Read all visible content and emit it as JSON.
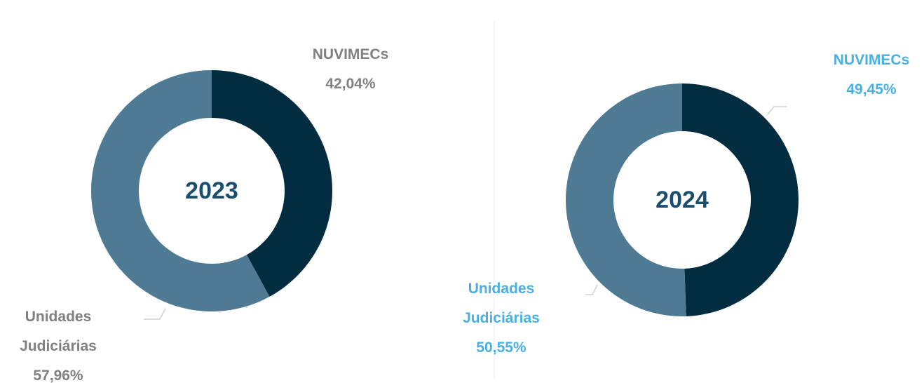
{
  "chart_data": [
    {
      "type": "donut",
      "title": "2023",
      "categories": [
        "NUVIMECs",
        "Unidades Judiciárias"
      ],
      "values": [
        42.04,
        57.96
      ],
      "value_labels": [
        "42,04%",
        "57,96%"
      ],
      "colors": [
        "#022c40",
        "#4e7b93"
      ],
      "label_color": "#808080"
    },
    {
      "type": "donut",
      "title": "2024",
      "categories": [
        "NUVIMECs",
        "Unidades Judiciárias"
      ],
      "values": [
        49.45,
        50.55
      ],
      "value_labels": [
        "49,45%",
        "50,55%"
      ],
      "colors": [
        "#022c40",
        "#4e7b93"
      ],
      "label_color": "#4ab0e0"
    }
  ]
}
